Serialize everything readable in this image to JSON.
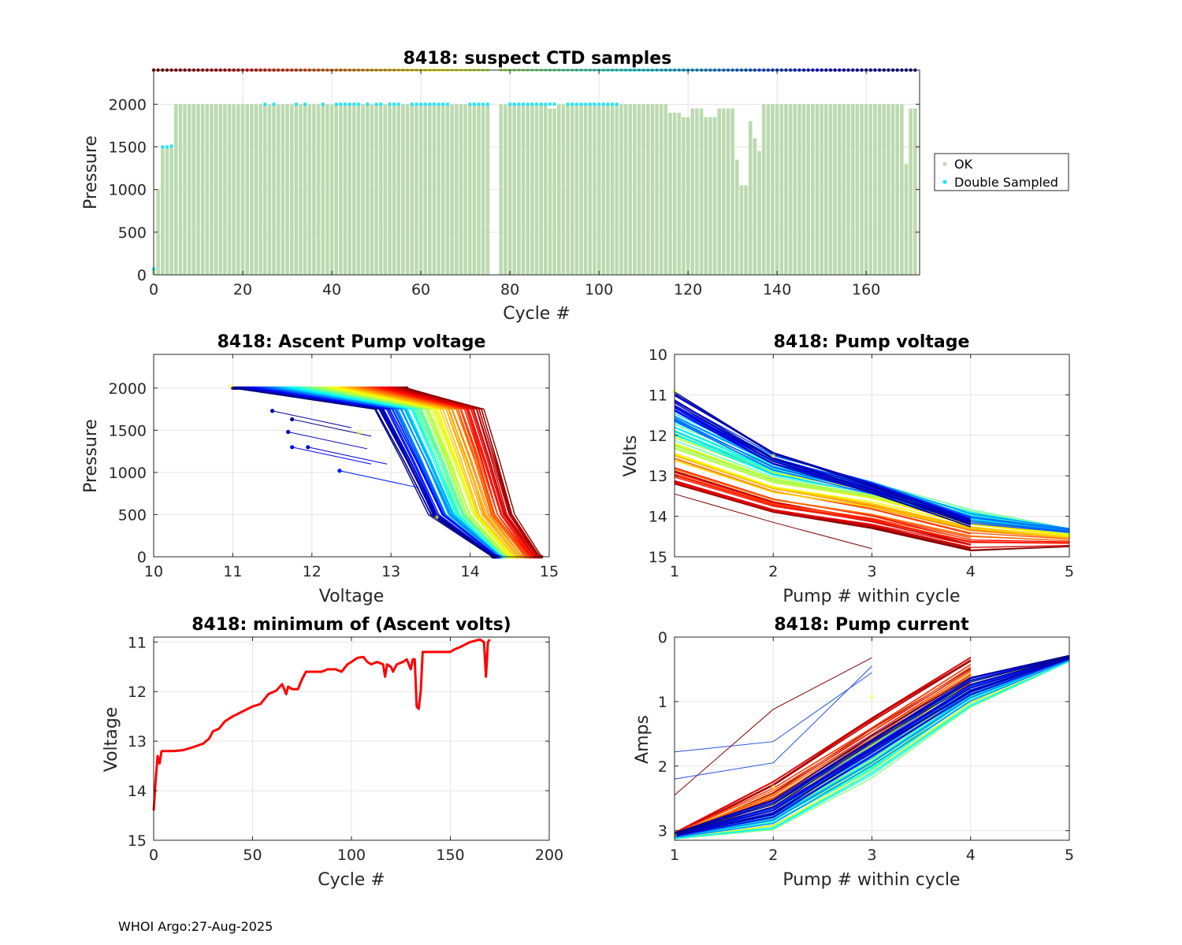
{
  "footer": "WHOI Argo:27-Aug-2025",
  "colors": {
    "ok": "#bcdab0",
    "double": "#22e6ff",
    "min_line": "#ff0000",
    "marker": "#ffff33"
  },
  "chart_data": [
    {
      "id": "ctd",
      "type": "scatter",
      "title": "8418: suspect CTD samples",
      "xlabel": "Cycle #",
      "ylabel": "Pressure",
      "xlim": [
        0,
        172
      ],
      "ylim": [
        2400,
        0
      ],
      "xticks": [
        "0",
        "20",
        "40",
        "60",
        "80",
        "100",
        "120",
        "140",
        "160"
      ],
      "yticks": [
        "0",
        "500",
        "1000",
        "1500",
        "2000"
      ],
      "legend": {
        "position": "right",
        "entries": [
          "OK",
          "Double Sampled"
        ]
      },
      "missing_cycles": [
        76,
        77
      ],
      "profile_bottoms": [
        {
          "cycles": [
            0,
            0
          ],
          "pressure": 80
        },
        {
          "cycles": [
            1,
            1
          ],
          "pressure": 1000
        },
        {
          "cycles": [
            2,
            4
          ],
          "pressure": 1500
        },
        {
          "cycles": [
            5,
            88
          ],
          "pressure": 2000
        },
        {
          "cycles": [
            89,
            90
          ],
          "pressure": 1950
        },
        {
          "cycles": [
            91,
            115
          ],
          "pressure": 2000
        },
        {
          "cycles": [
            116,
            118
          ],
          "pressure": 1900
        },
        {
          "cycles": [
            119,
            120
          ],
          "pressure": 1850
        },
        {
          "cycles": [
            121,
            123
          ],
          "pressure": 1950
        },
        {
          "cycles": [
            124,
            126
          ],
          "pressure": 1850
        },
        {
          "cycles": [
            127,
            130
          ],
          "pressure": 1950
        },
        {
          "cycles": [
            131,
            131
          ],
          "pressure": 1350
        },
        {
          "cycles": [
            132,
            133
          ],
          "pressure": 1050
        },
        {
          "cycles": [
            134,
            134
          ],
          "pressure": 1800
        },
        {
          "cycles": [
            135,
            135
          ],
          "pressure": 1600
        },
        {
          "cycles": [
            136,
            136
          ],
          "pressure": 1450
        },
        {
          "cycles": [
            137,
            168
          ],
          "pressure": 2000
        },
        {
          "cycles": [
            169,
            169
          ],
          "pressure": 1300
        },
        {
          "cycles": [
            170,
            171
          ],
          "pressure": 1950
        }
      ],
      "double_sampled": [
        {
          "cycle": 0,
          "pressure": 70
        },
        {
          "cycle": 2,
          "pressure": 1500
        },
        {
          "cycle": 3,
          "pressure": 1500
        },
        {
          "cycle": 4,
          "pressure": 1510
        }
      ],
      "double_sampled_bottom_cycles": [
        25,
        27,
        32,
        34,
        38,
        41,
        42,
        43,
        44,
        45,
        46,
        48,
        50,
        51,
        53,
        54,
        55,
        58,
        59,
        60,
        61,
        62,
        63,
        64,
        65,
        66,
        71,
        72,
        73,
        74,
        75,
        80,
        81,
        82,
        83,
        84,
        85,
        86,
        87,
        88,
        89,
        90,
        93,
        94,
        95,
        96,
        97,
        98,
        99,
        100,
        101,
        102,
        103,
        104
      ],
      "double_sampled_bottom_pressure": 2000,
      "surface_row_pressure": 2400
    },
    {
      "id": "ascent",
      "type": "line",
      "title": "8418: Ascent Pump voltage",
      "xlabel": "Voltage",
      "ylabel": "Pressure",
      "xlim": [
        10,
        15
      ],
      "ylim": [
        2400,
        0
      ],
      "xticks": [
        "10",
        "11",
        "12",
        "13",
        "14",
        "15"
      ],
      "yticks": [
        "0",
        "500",
        "1000",
        "1500",
        "2000"
      ],
      "colormap": "jet (dark red = early cycles, dark blue = late cycles)",
      "profile_voltages": {
        "early": {
          "v2000": 13.2,
          "v500": 14.55,
          "v0": 14.9
        },
        "middle": {
          "v2000": 12.0,
          "v500": 13.9,
          "v0": 14.4
        },
        "late": {
          "v2000": 11.0,
          "v500": 13.5,
          "v0": 14.3
        }
      },
      "outlier_points": [
        {
          "v": 12.35,
          "p": 1020
        },
        {
          "v": 11.75,
          "p": 1300
        },
        {
          "v": 11.95,
          "p": 1300
        },
        {
          "v": 11.7,
          "p": 1480
        },
        {
          "v": 11.5,
          "p": 1730
        },
        {
          "v": 11.75,
          "p": 1630
        }
      ]
    },
    {
      "id": "pumpv",
      "type": "line",
      "title": "8418: Pump voltage",
      "xlabel": "Pump # within cycle",
      "ylabel": "Volts",
      "xlim": [
        1,
        5
      ],
      "ylim": [
        10,
        15
      ],
      "xticks": [
        "1",
        "2",
        "3",
        "4",
        "5"
      ],
      "yticks": [
        "10",
        "11",
        "12",
        "13",
        "14",
        "15"
      ],
      "series_shape": {
        "early": [
          13.2,
          13.9,
          14.3,
          14.85,
          14.75
        ],
        "middle": [
          12.0,
          12.9,
          13.3,
          13.9,
          14.35
        ],
        "late": [
          11.0,
          12.5,
          13.3,
          14.2
        ]
      }
    },
    {
      "id": "minv",
      "type": "line",
      "title": "8418: minimum of (Ascent volts)",
      "xlabel": "Cycle #",
      "ylabel": "Voltage",
      "xlim": [
        0,
        200
      ],
      "ylim": [
        10.9,
        15
      ],
      "xticks": [
        "0",
        "50",
        "100",
        "150",
        "200"
      ],
      "yticks": [
        "11",
        "12",
        "13",
        "14",
        "15"
      ],
      "points": [
        [
          0,
          14.4
        ],
        [
          1,
          13.8
        ],
        [
          2,
          13.3
        ],
        [
          3,
          13.45
        ],
        [
          4,
          13.2
        ],
        [
          6,
          13.2
        ],
        [
          10,
          13.2
        ],
        [
          15,
          13.18
        ],
        [
          20,
          13.12
        ],
        [
          25,
          13.05
        ],
        [
          28,
          12.95
        ],
        [
          30,
          12.8
        ],
        [
          33,
          12.75
        ],
        [
          36,
          12.6
        ],
        [
          40,
          12.5
        ],
        [
          45,
          12.4
        ],
        [
          50,
          12.3
        ],
        [
          54,
          12.25
        ],
        [
          58,
          12.05
        ],
        [
          62,
          11.98
        ],
        [
          65,
          11.85
        ],
        [
          67,
          12.05
        ],
        [
          68,
          11.9
        ],
        [
          70,
          11.95
        ],
        [
          73,
          11.95
        ],
        [
          75,
          11.75
        ],
        [
          77,
          11.6
        ],
        [
          80,
          11.6
        ],
        [
          85,
          11.6
        ],
        [
          88,
          11.55
        ],
        [
          92,
          11.55
        ],
        [
          95,
          11.6
        ],
        [
          98,
          11.45
        ],
        [
          100,
          11.4
        ],
        [
          103,
          11.32
        ],
        [
          106,
          11.3
        ],
        [
          108,
          11.4
        ],
        [
          110,
          11.45
        ],
        [
          113,
          11.4
        ],
        [
          116,
          11.45
        ],
        [
          117,
          11.7
        ],
        [
          118,
          11.45
        ],
        [
          120,
          11.5
        ],
        [
          121,
          11.6
        ],
        [
          123,
          11.45
        ],
        [
          126,
          11.4
        ],
        [
          128,
          11.35
        ],
        [
          130,
          11.55
        ],
        [
          131,
          11.35
        ],
        [
          132,
          11.35
        ],
        [
          133,
          12.3
        ],
        [
          134,
          12.35
        ],
        [
          135,
          12.0
        ],
        [
          136,
          11.2
        ],
        [
          140,
          11.2
        ],
        [
          145,
          11.2
        ],
        [
          150,
          11.2
        ],
        [
          152,
          11.15
        ],
        [
          155,
          11.1
        ],
        [
          160,
          11.0
        ],
        [
          165,
          10.95
        ],
        [
          167,
          11.0
        ],
        [
          168,
          11.7
        ],
        [
          169,
          11.0
        ],
        [
          170,
          10.95
        ]
      ]
    },
    {
      "id": "pumpi",
      "type": "line",
      "title": "8418: Pump current",
      "xlabel": "Pump # within cycle",
      "ylabel": "Amps",
      "xlim": [
        1,
        5
      ],
      "ylim": [
        0,
        3.15
      ],
      "xticks": [
        "1",
        "2",
        "3",
        "4",
        "5"
      ],
      "yticks": [
        "0",
        "1",
        "2",
        "3"
      ],
      "series_shape": {
        "early": [
          3.05,
          2.25,
          1.25,
          0.32
        ],
        "middle": [
          3.1,
          2.85,
          2.05,
          0.95,
          0.35
        ],
        "late": [
          3.05,
          2.6,
          1.6,
          0.7,
          0.3
        ]
      },
      "outlier_series": [
        [
          1.78,
          1.62,
          0.55
        ],
        [
          2.45,
          1.12,
          0.32
        ],
        [
          2.2,
          1.95,
          0.45
        ]
      ]
    }
  ]
}
